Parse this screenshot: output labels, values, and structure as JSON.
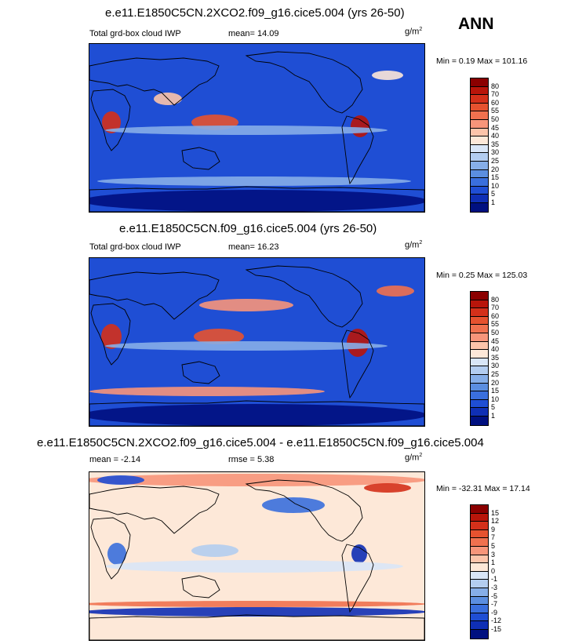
{
  "season": "ANN",
  "panels": [
    {
      "title": "e.e11.E1850C5CN.2XCO2.f09_g16.cice5.004 (yrs 26-50)",
      "left_label": "Total grd-box cloud IWP",
      "stat1": "mean=  14.09",
      "stat2": "",
      "units_base": "g/m",
      "units_exp": "2",
      "minmax": "Min =   0.19 Max = 101.16"
    },
    {
      "title": "e.e11.E1850C5CN.f09_g16.cice5.004 (yrs 26-50)",
      "left_label": "Total grd-box cloud IWP",
      "stat1": "mean=  16.23",
      "stat2": "",
      "units_base": "g/m",
      "units_exp": "2",
      "minmax": "Min =   0.25 Max = 125.03"
    },
    {
      "title": "e.e11.E1850C5CN.2XCO2.f09_g16.cice5.004 - e.e11.E1850C5CN.f09_g16.cice5.004",
      "left_label": "mean =  -2.14",
      "stat1": "",
      "stat2": "rmse =   5.38",
      "units_base": "g/m",
      "units_exp": "2",
      "minmax": "Min = -32.31 Max =  17.14"
    }
  ],
  "chart_data": [
    {
      "type": "heatmap",
      "title": "e.e11.E1850C5CN.2XCO2.f09_g16.cice5.004 (yrs 26-50)",
      "variable": "Total grd-box cloud IWP",
      "units": "g/m2",
      "mean": 14.09,
      "min": 0.19,
      "max": 101.16,
      "colorbar_levels": [
        "80",
        "70",
        "60",
        "55",
        "50",
        "45",
        "40",
        "35",
        "30",
        "25",
        "20",
        "15",
        "10",
        "5",
        "1"
      ],
      "colorbar_colors": [
        "#8b0000",
        "#b8150a",
        "#d4301a",
        "#e6522f",
        "#f0714f",
        "#f7957a",
        "#fcc4aa",
        "#fde8d8",
        "#d9e6f7",
        "#b3cdf0",
        "#86aee8",
        "#5b8ee0",
        "#3a6fdd",
        "#1f4ed4",
        "#0f2fb5",
        "#001080"
      ]
    },
    {
      "type": "heatmap",
      "title": "e.e11.E1850C5CN.f09_g16.cice5.004 (yrs 26-50)",
      "variable": "Total grd-box cloud IWP",
      "units": "g/m2",
      "mean": 16.23,
      "min": 0.25,
      "max": 125.03,
      "colorbar_levels": [
        "80",
        "70",
        "60",
        "55",
        "50",
        "45",
        "40",
        "35",
        "30",
        "25",
        "20",
        "15",
        "10",
        "5",
        "1"
      ],
      "colorbar_colors": [
        "#8b0000",
        "#b8150a",
        "#d4301a",
        "#e6522f",
        "#f0714f",
        "#f7957a",
        "#fcc4aa",
        "#fde8d8",
        "#d9e6f7",
        "#b3cdf0",
        "#86aee8",
        "#5b8ee0",
        "#3a6fdd",
        "#1f4ed4",
        "#0f2fb5",
        "#001080"
      ]
    },
    {
      "type": "heatmap",
      "title": "e.e11.E1850C5CN.2XCO2.f09_g16.cice5.004 - e.e11.E1850C5CN.f09_g16.cice5.004",
      "units": "g/m2",
      "mean": -2.14,
      "rmse": 5.38,
      "min": -32.31,
      "max": 17.14,
      "colorbar_levels": [
        "15",
        "12",
        "9",
        "7",
        "5",
        "3",
        "1",
        "0",
        "-1",
        "-3",
        "-5",
        "-7",
        "-9",
        "-12",
        "-15"
      ],
      "colorbar_colors": [
        "#8b0000",
        "#b8150a",
        "#d4301a",
        "#e6522f",
        "#f0714f",
        "#f7957a",
        "#fcc4aa",
        "#fde8d8",
        "#d9e6f7",
        "#b3cdf0",
        "#86aee8",
        "#5b8ee0",
        "#3a6fdd",
        "#1f4ed4",
        "#0f2fb5",
        "#001080"
      ]
    }
  ]
}
